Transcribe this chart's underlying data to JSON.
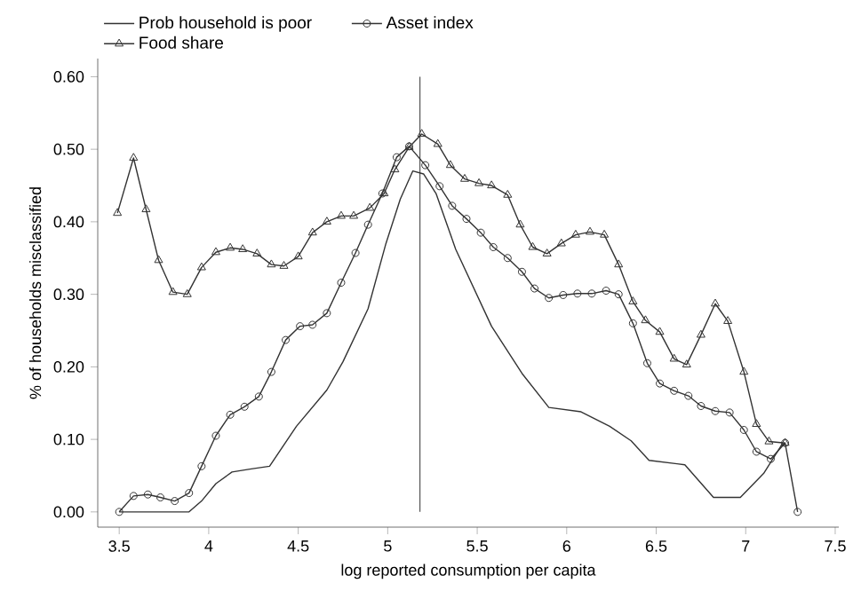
{
  "chart_data": {
    "type": "line",
    "xlabel": "log reported consumption per capita",
    "ylabel": "% of households misclassified",
    "xlim": [
      3.38,
      7.52
    ],
    "ylim": [
      -0.021,
      0.625
    ],
    "xticks": [
      3.5,
      4,
      4.5,
      5,
      5.5,
      6,
      6.5,
      7,
      7.5
    ],
    "yticks": [
      {
        "value": 0,
        "label": "0.00"
      },
      {
        "value": 0.1,
        "label": "0.10"
      },
      {
        "value": 0.2,
        "label": "0.20"
      },
      {
        "value": 0.3,
        "label": "0.30"
      },
      {
        "value": 0.4,
        "label": "0.40"
      },
      {
        "value": 0.5,
        "label": "0.50"
      },
      {
        "value": 0.6,
        "label": "0.60"
      }
    ],
    "legend": "top",
    "grid": false,
    "ref_lines": [
      {
        "axis": "x",
        "value": 5.18,
        "color": "#555555"
      }
    ],
    "series": [
      {
        "name": "Prob household is poor",
        "color": "#333333",
        "marker": "none",
        "line_style": "solid",
        "x": [
          3.5,
          3.89,
          3.96,
          4.04,
          4.13,
          4.23,
          4.34,
          4.49,
          4.66,
          4.75,
          4.89,
          4.99,
          5.07,
          5.14,
          5.2,
          5.27,
          5.38,
          5.58,
          5.75,
          5.9,
          6.08,
          6.24,
          6.36,
          6.46,
          6.66,
          6.82,
          6.97,
          7.1,
          7.2,
          7.22
        ],
        "values": [
          0,
          0,
          0.015,
          0.039,
          0.055,
          0.059,
          0.063,
          0.118,
          0.168,
          0.207,
          0.28,
          0.37,
          0.431,
          0.47,
          0.466,
          0.439,
          0.362,
          0.256,
          0.191,
          0.144,
          0.138,
          0.118,
          0.098,
          0.071,
          0.065,
          0.02,
          0.02,
          0.053,
          0.092,
          0.095
        ]
      },
      {
        "name": "Asset index",
        "color": "#333333",
        "marker": "circle",
        "line_style": "solid",
        "x": [
          3.5,
          3.58,
          3.66,
          3.73,
          3.81,
          3.89,
          3.96,
          4.04,
          4.12,
          4.2,
          4.28,
          4.35,
          4.43,
          4.51,
          4.58,
          4.66,
          4.74,
          4.82,
          4.89,
          4.97,
          5.05,
          5.12,
          5.21,
          5.29,
          5.36,
          5.44,
          5.52,
          5.59,
          5.67,
          5.75,
          5.82,
          5.9,
          5.98,
          6.06,
          6.14,
          6.22,
          6.29,
          6.37,
          6.45,
          6.52,
          6.6,
          6.68,
          6.75,
          6.83,
          6.91,
          6.99,
          7.06,
          7.14,
          7.22,
          7.29
        ],
        "values": [
          0,
          0.022,
          0.024,
          0.02,
          0.015,
          0.026,
          0.063,
          0.105,
          0.134,
          0.145,
          0.159,
          0.193,
          0.237,
          0.256,
          0.258,
          0.274,
          0.316,
          0.357,
          0.396,
          0.439,
          0.489,
          0.504,
          0.478,
          0.449,
          0.422,
          0.404,
          0.385,
          0.365,
          0.35,
          0.331,
          0.308,
          0.295,
          0.299,
          0.301,
          0.301,
          0.305,
          0.3,
          0.26,
          0.205,
          0.177,
          0.167,
          0.16,
          0.146,
          0.139,
          0.137,
          0.113,
          0.083,
          0.073,
          0.095,
          0
        ]
      },
      {
        "name": "Food share",
        "color": "#333333",
        "marker": "triangle",
        "line_style": "solid",
        "x": [
          3.49,
          3.58,
          3.65,
          3.72,
          3.8,
          3.88,
          3.96,
          4.04,
          4.12,
          4.19,
          4.27,
          4.35,
          4.42,
          4.5,
          4.58,
          4.66,
          4.74,
          4.81,
          4.9,
          4.98,
          5.04,
          5.12,
          5.19,
          5.28,
          5.35,
          5.43,
          5.51,
          5.58,
          5.67,
          5.74,
          5.81,
          5.89,
          5.97,
          6.05,
          6.13,
          6.21,
          6.29,
          6.37,
          6.44,
          6.52,
          6.6,
          6.67,
          6.75,
          6.83,
          6.9,
          6.99,
          7.06,
          7.13,
          7.22
        ],
        "values": [
          0.412,
          0.488,
          0.417,
          0.347,
          0.303,
          0.3,
          0.337,
          0.358,
          0.364,
          0.362,
          0.356,
          0.341,
          0.339,
          0.352,
          0.385,
          0.4,
          0.408,
          0.408,
          0.419,
          0.439,
          0.472,
          0.503,
          0.521,
          0.507,
          0.478,
          0.459,
          0.453,
          0.45,
          0.437,
          0.396,
          0.365,
          0.356,
          0.37,
          0.382,
          0.386,
          0.382,
          0.341,
          0.29,
          0.264,
          0.248,
          0.211,
          0.203,
          0.244,
          0.287,
          0.263,
          0.193,
          0.121,
          0.097,
          0.095
        ]
      }
    ]
  }
}
